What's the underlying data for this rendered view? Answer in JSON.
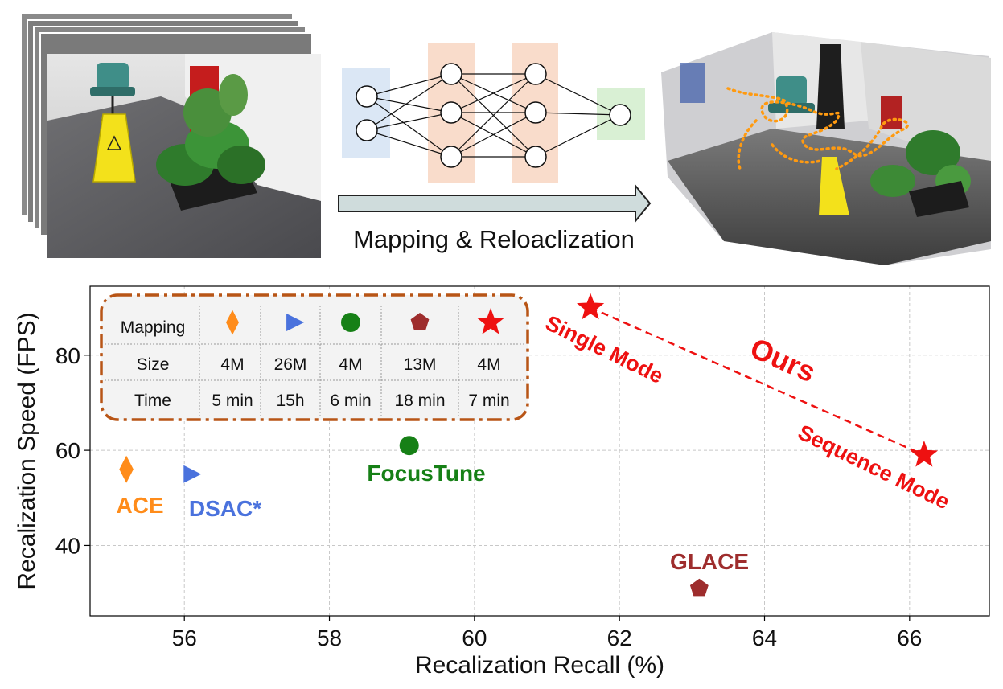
{
  "pipeline": {
    "caption": "Mapping & Reloaclization"
  },
  "chart_data": {
    "type": "scatter",
    "xlabel": "Recalization Recall (%)",
    "ylabel": "Recalization Speed (FPS)",
    "xlim": [
      54.7,
      67.1
    ],
    "ylim": [
      25.2,
      94.5
    ],
    "xticks": [
      56,
      58,
      60,
      62,
      64,
      66
    ],
    "yticks": [
      40,
      60,
      80
    ],
    "grid": true,
    "points": [
      {
        "name": "ACE",
        "x": 55.2,
        "y": 56,
        "marker": "diamond",
        "color": "#ff8c1a"
      },
      {
        "name": "DSAC*",
        "x": 56.1,
        "y": 55,
        "marker": "triangle-right",
        "color": "#4a72dd"
      },
      {
        "name": "FocusTune",
        "x": 59.1,
        "y": 61,
        "marker": "circle",
        "color": "#168016"
      },
      {
        "name": "GLACE",
        "x": 63.1,
        "y": 31,
        "marker": "pentagon",
        "color": "#9e2d2d"
      },
      {
        "name": "Single Mode",
        "x": 61.6,
        "y": 90,
        "marker": "star",
        "color": "#ee1111"
      },
      {
        "name": "Sequence Mode",
        "x": 66.2,
        "y": 59,
        "marker": "star",
        "color": "#ee1111"
      }
    ],
    "annotation": {
      "text": "Ours",
      "color": "#ee1111"
    },
    "table": {
      "rows": [
        {
          "label": "Mapping",
          "values": []
        },
        {
          "label": "Size",
          "values": [
            "4M",
            "26M",
            "4M",
            "13M",
            "4M"
          ]
        },
        {
          "label": "Time",
          "values": [
            "5 min",
            "15h",
            "6 min",
            "18 min",
            "7 min"
          ]
        }
      ],
      "markers": [
        "diamond",
        "triangle-right",
        "circle",
        "pentagon",
        "star"
      ],
      "marker_colors": [
        "#ff8c1a",
        "#4a72dd",
        "#168016",
        "#9e2d2d",
        "#ee1111"
      ]
    }
  }
}
